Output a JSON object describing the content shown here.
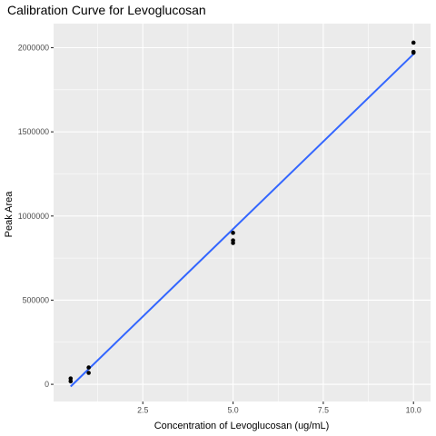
{
  "chart_data": {
    "type": "scatter",
    "title": "Calibration Curve for Levoglucosan",
    "xlabel": "Concentration of Levoglucosan (ug/mL)",
    "ylabel": "Peak Area",
    "xlim": [
      0.0275,
      10.4725
    ],
    "ylim": [
      -102000,
      2143000
    ],
    "x_ticks": [
      2.5,
      5.0,
      7.5,
      10.0
    ],
    "x_tick_labels": [
      "2.5",
      "5.0",
      "7.5",
      "10.0"
    ],
    "y_ticks": [
      0,
      500000,
      1000000,
      1500000,
      2000000
    ],
    "y_tick_labels": [
      "0",
      "500000",
      "1000000",
      "1500000",
      "2000000"
    ],
    "grid": true,
    "panel_background": "#ebebeb",
    "grid_color": "#ffffff",
    "series": [
      {
        "kind": "points",
        "color": "#000000",
        "points": [
          {
            "x": 0.5,
            "y": 35000
          },
          {
            "x": 0.5,
            "y": 18000
          },
          {
            "x": 1.0,
            "y": 100000
          },
          {
            "x": 1.0,
            "y": 68000
          },
          {
            "x": 5.0,
            "y": 900000
          },
          {
            "x": 5.0,
            "y": 855000
          },
          {
            "x": 5.0,
            "y": 840000
          },
          {
            "x": 10.0,
            "y": 2030000
          },
          {
            "x": 10.0,
            "y": 1975000
          },
          {
            "x": 10.0,
            "y": 1970000
          }
        ]
      },
      {
        "kind": "fit-line",
        "color": "#3366ff",
        "x": [
          0.5,
          10.0
        ],
        "y": [
          -13000,
          1962000
        ]
      }
    ]
  }
}
